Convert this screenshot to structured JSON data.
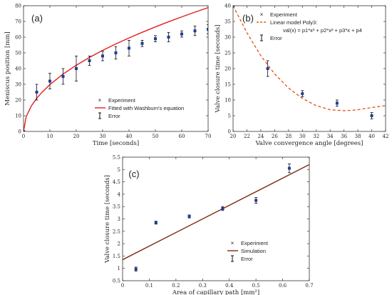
{
  "chart_data": [
    {
      "panel_label": "(a)",
      "type": "scatter",
      "xlabel": "Time [seconds]",
      "ylabel": "Meniscus position [mm]",
      "xlim": [
        0,
        70
      ],
      "ylim": [
        0,
        80
      ],
      "xticks": [
        0,
        10,
        20,
        30,
        40,
        50,
        60,
        70
      ],
      "yticks": [
        0,
        10,
        20,
        30,
        40,
        50,
        60,
        70,
        80
      ],
      "grid": false,
      "legend_position": "bottom-right",
      "series": [
        {
          "name": "Experiment",
          "kind": "points-with-error",
          "color": "#1f3d99",
          "x": [
            0,
            5,
            10,
            15,
            20,
            25,
            30,
            35,
            40,
            45,
            50,
            55,
            60,
            65,
            70
          ],
          "y": [
            0,
            25,
            32,
            35,
            40,
            45,
            48,
            50,
            53,
            56,
            59,
            60,
            62,
            64,
            65
          ],
          "err": [
            0,
            5,
            5,
            5,
            8,
            3,
            3,
            4,
            5,
            2,
            2,
            3,
            2,
            3,
            3
          ]
        },
        {
          "name": "Fitted with Washburn's equation",
          "kind": "line",
          "color": "#e32020",
          "x": [
            0,
            1,
            3,
            5,
            7,
            10,
            15,
            20,
            25,
            30,
            35,
            40,
            45,
            50,
            55,
            60,
            65,
            70
          ],
          "y": [
            0,
            9.4,
            16.3,
            21.1,
            24.9,
            29.8,
            36.5,
            42.1,
            47.1,
            51.6,
            55.7,
            59.5,
            63.1,
            66.5,
            69.8,
            72.9,
            75.9,
            78.8
          ]
        }
      ],
      "error_legend_label": "Error"
    },
    {
      "panel_label": "(b)",
      "type": "scatter",
      "xlabel": "Valve convergence angle [degrees]",
      "ylabel": "Valve closure time [seconds]",
      "xlim": [
        20,
        42
      ],
      "ylim": [
        0,
        40
      ],
      "xticks": [
        20,
        22,
        24,
        26,
        28,
        30,
        32,
        34,
        36,
        38,
        40,
        42
      ],
      "yticks": [
        0,
        5,
        10,
        15,
        20,
        25,
        30,
        35,
        40
      ],
      "grid": false,
      "legend_position": "top-right",
      "series": [
        {
          "name": "Experiment",
          "kind": "points-with-error",
          "color": "#1f3d99",
          "x": [
            20,
            25,
            30,
            35,
            40
          ],
          "y": [
            40,
            20,
            12,
            9,
            5
          ],
          "err": [
            0,
            2.5,
            1,
            1,
            1
          ]
        },
        {
          "name": "Linear model Poly3:",
          "kind": "dashed-line",
          "color": "#e06020",
          "x": [
            20,
            22,
            24,
            26,
            28,
            30,
            32,
            34,
            36,
            37,
            38,
            40,
            42
          ],
          "y": [
            40,
            31.4,
            24.1,
            18.3,
            13.8,
            10.5,
            8.2,
            6.9,
            6.6,
            6.7,
            6.9,
            7.6,
            8.2
          ]
        }
      ],
      "legend_equation": "val(x) = p1*x³ + p2*x² + p3*x + p4",
      "error_legend_label": "Error"
    },
    {
      "panel_label": "(c)",
      "type": "scatter",
      "xlabel": "Area of capillary path [mm²]",
      "ylabel": "Valve closure time [seconds]",
      "xlim": [
        0,
        0.7
      ],
      "ylim": [
        0.5,
        5.5
      ],
      "xticks": [
        0,
        0.1,
        0.2,
        0.3,
        0.4,
        0.5,
        0.6,
        0.7
      ],
      "yticks": [
        0.5,
        1,
        1.5,
        2,
        2.5,
        3,
        3.5,
        4,
        4.5,
        5,
        5.5
      ],
      "grid": false,
      "legend_position": "bottom-right",
      "series": [
        {
          "name": "Experiment",
          "kind": "points-with-error",
          "color": "#1f3d99",
          "x": [
            0.05,
            0.125,
            0.25,
            0.375,
            0.5,
            0.625
          ],
          "y": [
            0.97,
            2.85,
            3.1,
            3.42,
            3.75,
            5.05
          ],
          "err": [
            0.08,
            0.06,
            0.06,
            0.08,
            0.12,
            0.18
          ]
        },
        {
          "name": "Simulation",
          "kind": "line",
          "color": "#7a2a10",
          "x": [
            0,
            0.7
          ],
          "y": [
            1.35,
            5.2
          ]
        }
      ],
      "error_legend_label": "Error"
    }
  ]
}
